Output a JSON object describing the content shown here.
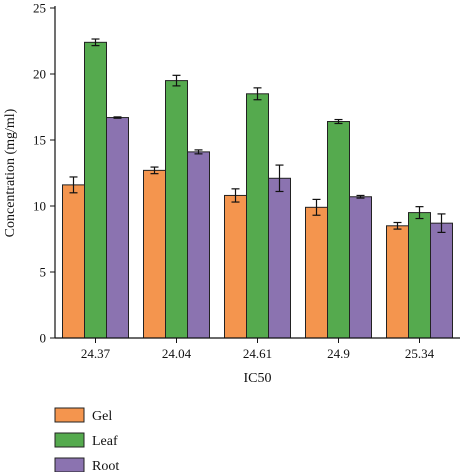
{
  "chart_data": {
    "type": "bar",
    "title": "",
    "xlabel": "IC50",
    "ylabel": "Concentration (mg/ml)",
    "ylim": [
      0,
      25
    ],
    "yticks": [
      0,
      5,
      10,
      15,
      20,
      25
    ],
    "categories": [
      "24.37",
      "24.04",
      "24.61",
      "24.9",
      "25.34"
    ],
    "series": [
      {
        "name": "Gel",
        "color": "#F4954E",
        "values": [
          11.6,
          12.7,
          10.8,
          9.9,
          8.5
        ],
        "errors": [
          0.6,
          0.25,
          0.5,
          0.6,
          0.25
        ]
      },
      {
        "name": "Leaf",
        "color": "#55AA4E",
        "values": [
          22.4,
          19.5,
          18.5,
          16.4,
          9.5
        ],
        "errors": [
          0.25,
          0.4,
          0.45,
          0.15,
          0.45
        ]
      },
      {
        "name": "Root",
        "color": "#8B73B0",
        "values": [
          16.7,
          14.1,
          12.1,
          10.7,
          8.7
        ],
        "errors": [
          0.05,
          0.15,
          1.0,
          0.1,
          0.7
        ]
      }
    ],
    "legend_position": "bottom-left",
    "grid": false
  }
}
